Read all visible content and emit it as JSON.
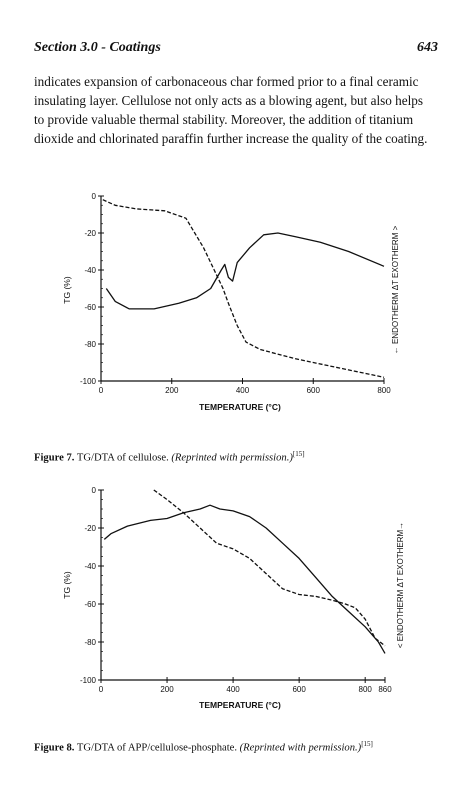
{
  "header": {
    "section": "Section 3.0 - Coatings",
    "page_number": "643"
  },
  "body_paragraph": [
    "indicates expansion of carbonaceous char formed prior to a final ceramic",
    "insulating layer. Cellulose not only acts as a blowing agent, but also helps",
    "to provide valuable thermal stability. Moreover, the addition of titanium",
    "dioxide and chlorinated paraffin further increase the quality of the coating."
  ],
  "figures": [
    {
      "label": "Figure 7.",
      "text": "TG/DTA of cellulose.",
      "permission": "(Reprinted with permission.)",
      "ref": "[15]"
    },
    {
      "label": "Figure 8.",
      "text": "TG/DTA of APP/cellulose-phosphate.",
      "permission": "(Reprinted with permission.)",
      "ref": "[15]"
    }
  ],
  "chart_data": [
    {
      "type": "line",
      "xlabel": "TEMPERATURE (°C)",
      "ylabel": "TG (%)",
      "right_axis_label": "← ENDOTHERM  ΔT  EXOTHERM >",
      "xlim": [
        0,
        800
      ],
      "ylim": [
        -100,
        0
      ],
      "xticks": [
        "0",
        "200",
        "400",
        "600",
        "800"
      ],
      "yticks": [
        "0",
        "-20",
        "-40",
        "-60",
        "-80",
        "-100"
      ],
      "series": [
        {
          "style": "dashed",
          "points": [
            [
              5,
              -2
            ],
            [
              40,
              -5
            ],
            [
              100,
              -7
            ],
            [
              180,
              -8
            ],
            [
              240,
              -12
            ],
            [
              290,
              -28
            ],
            [
              320,
              -40
            ],
            [
              345,
              -50
            ],
            [
              360,
              -58
            ],
            [
              385,
              -70
            ],
            [
              410,
              -79
            ],
            [
              450,
              -83
            ],
            [
              550,
              -88
            ],
            [
              650,
              -92
            ],
            [
              750,
              -96
            ],
            [
              800,
              -98
            ]
          ]
        },
        {
          "style": "solid",
          "points": [
            [
              15,
              -50
            ],
            [
              40,
              -57
            ],
            [
              80,
              -61
            ],
            [
              150,
              -61
            ],
            [
              220,
              -58
            ],
            [
              270,
              -55
            ],
            [
              310,
              -50
            ],
            [
              340,
              -40
            ],
            [
              350,
              -37
            ],
            [
              360,
              -44
            ],
            [
              372,
              -46
            ],
            [
              385,
              -36
            ],
            [
              420,
              -28
            ],
            [
              460,
              -21
            ],
            [
              500,
              -20
            ],
            [
              550,
              -22
            ],
            [
              620,
              -25
            ],
            [
              700,
              -30
            ],
            [
              800,
              -38
            ]
          ]
        }
      ]
    },
    {
      "type": "line",
      "xlabel": "TEMPERATURE (°C)",
      "ylabel": "TG (%)",
      "right_axis_label": "< ENDOTHERM  ΔT  EXOTHERM→",
      "xlim": [
        0,
        860
      ],
      "ylim": [
        -100,
        0
      ],
      "xticks": [
        "0",
        "200",
        "400",
        "600",
        "800",
        "860"
      ],
      "yticks": [
        "0",
        "-20",
        "-40",
        "-60",
        "-80",
        "-100"
      ],
      "series": [
        {
          "style": "dashed",
          "points": [
            [
              160,
              0
            ],
            [
              200,
              -5
            ],
            [
              250,
              -12
            ],
            [
              300,
              -20
            ],
            [
              350,
              -28
            ],
            [
              400,
              -31
            ],
            [
              450,
              -36
            ],
            [
              500,
              -44
            ],
            [
              550,
              -52
            ],
            [
              600,
              -55
            ],
            [
              650,
              -56
            ],
            [
              700,
              -58
            ],
            [
              740,
              -60
            ],
            [
              770,
              -62
            ],
            [
              800,
              -68
            ],
            [
              830,
              -78
            ],
            [
              860,
              -82
            ]
          ]
        },
        {
          "style": "solid",
          "points": [
            [
              10,
              -26
            ],
            [
              30,
              -23
            ],
            [
              80,
              -19
            ],
            [
              150,
              -16
            ],
            [
              200,
              -15
            ],
            [
              250,
              -12
            ],
            [
              300,
              -10
            ],
            [
              330,
              -8
            ],
            [
              360,
              -10
            ],
            [
              400,
              -11
            ],
            [
              450,
              -14
            ],
            [
              500,
              -20
            ],
            [
              550,
              -28
            ],
            [
              600,
              -36
            ],
            [
              650,
              -46
            ],
            [
              700,
              -56
            ],
            [
              750,
              -64
            ],
            [
              800,
              -72
            ],
            [
              840,
              -80
            ],
            [
              860,
              -86
            ]
          ]
        }
      ]
    }
  ]
}
